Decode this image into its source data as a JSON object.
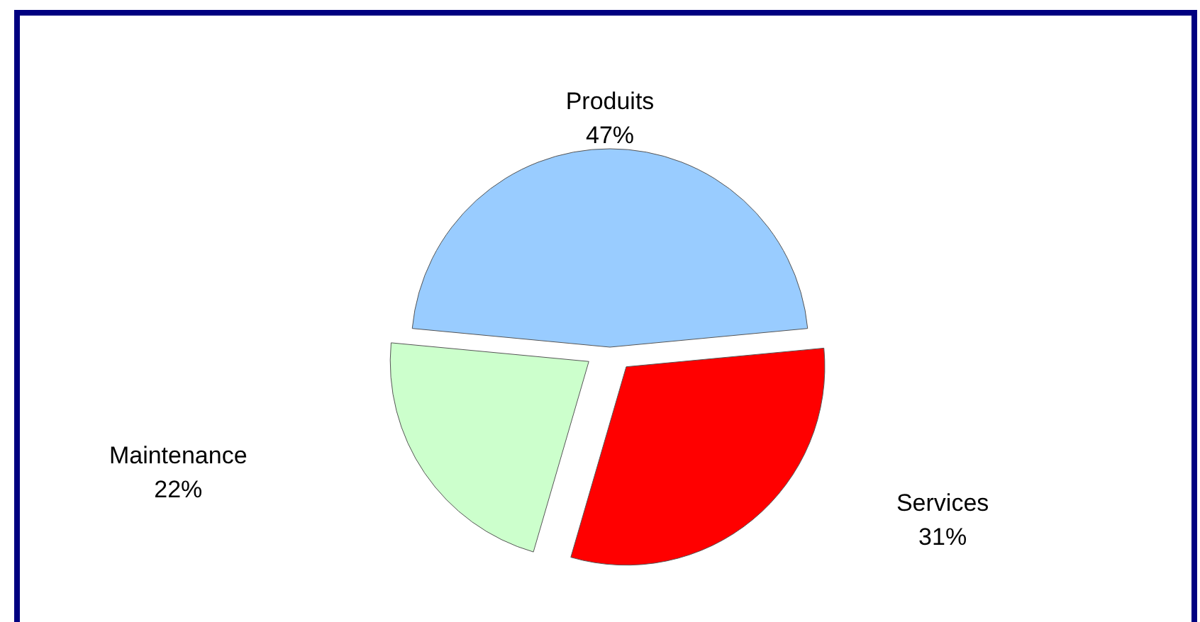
{
  "chart_data": {
    "type": "pie",
    "categories": [
      "Produits",
      "Services",
      "Maintenance"
    ],
    "values": [
      47,
      31,
      22
    ],
    "colors": [
      "#99ccff",
      "#ff0000",
      "#ccffcc"
    ],
    "value_labels": [
      "47%",
      "31%",
      "22%"
    ]
  }
}
